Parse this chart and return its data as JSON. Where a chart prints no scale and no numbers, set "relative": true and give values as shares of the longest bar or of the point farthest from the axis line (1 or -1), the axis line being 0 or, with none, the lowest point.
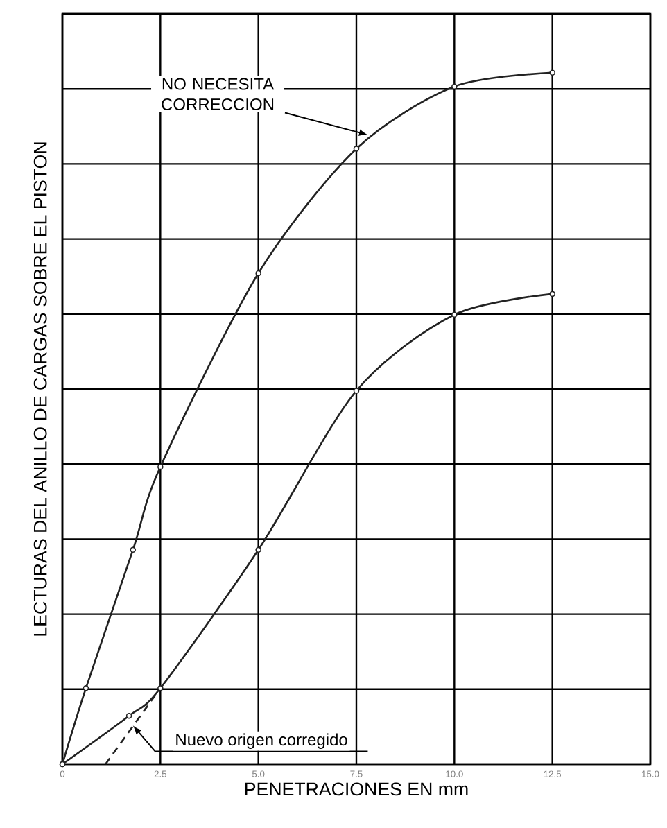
{
  "chart_data": {
    "type": "line",
    "xlabel": "PENETRACIONES EN mm",
    "ylabel": "LECTURAS DEL ANILLO DE CARGAS SOBRE EL PISTON",
    "relative": true,
    "grid": true,
    "marker": "circle",
    "xlim": [
      0,
      15
    ],
    "xticks": [
      0,
      2.5,
      {
        "value": 5,
        "label": "5.0"
      },
      7.5,
      {
        "value": 10,
        "label": "10.0"
      },
      12.5,
      {
        "value": 15,
        "label": "15.0"
      }
    ],
    "series": [
      {
        "color": "#222222",
        "x": [
          0,
          0.6,
          1.8,
          2.5,
          5.0,
          7.5,
          10.0,
          12.5
        ],
        "values": [
          0,
          0.11,
          0.31,
          0.43,
          0.71,
          0.89,
          0.98,
          1
        ]
      },
      {
        "color": "#222222",
        "x": [
          0,
          1.7,
          2.5,
          5.0,
          7.5,
          10.0,
          12.5
        ],
        "values": [
          0,
          0.07,
          0.11,
          0.31,
          0.54,
          0.65,
          0.68
        ]
      },
      {
        "color": "#222222",
        "type": "line",
        "marker": "none",
        "line_style": "dashed",
        "x": [
          1.1,
          2.5
        ],
        "values": [
          0,
          0.11
        ]
      }
    ],
    "annotations": [
      {
        "text": "NO NECESITA CORRECCION",
        "x": 7.8,
        "y": 0.91
      },
      {
        "text": "Nuevo origen corregido",
        "x": 1.8,
        "y": 0.056
      }
    ]
  }
}
